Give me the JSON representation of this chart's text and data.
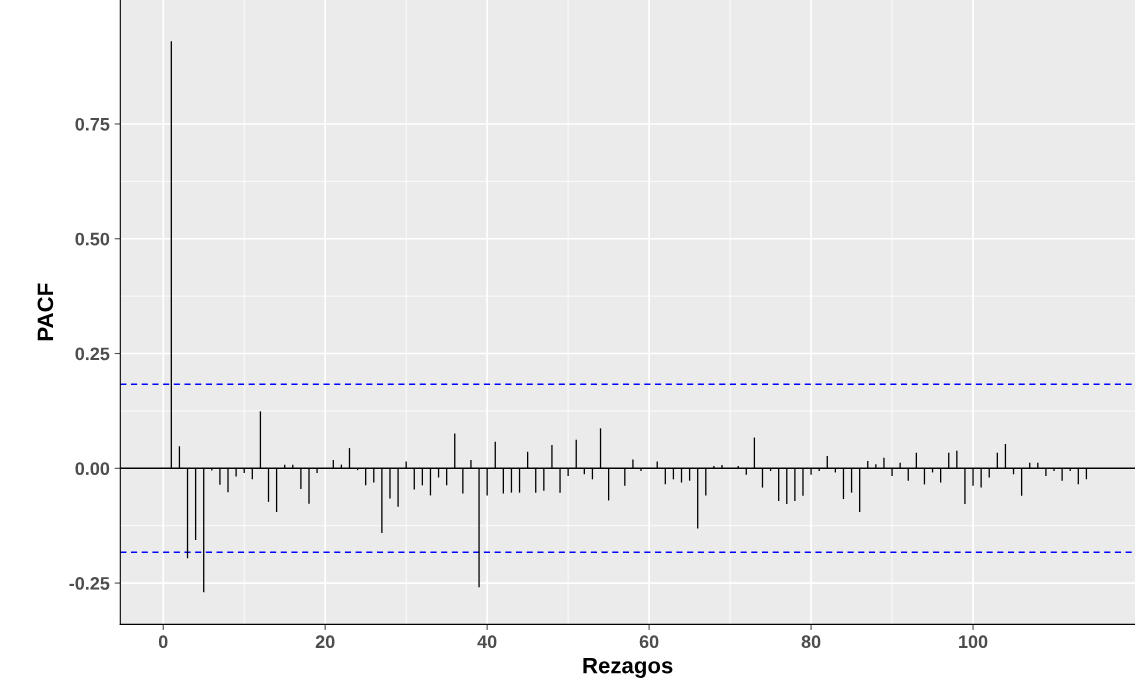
{
  "chart_data": {
    "type": "bar",
    "xlabel": "Rezagos",
    "ylabel": "PACF",
    "x": [
      1,
      2,
      3,
      4,
      5,
      6,
      7,
      8,
      9,
      10,
      11,
      12,
      13,
      14,
      15,
      16,
      17,
      18,
      19,
      20,
      21,
      22,
      23,
      24,
      25,
      26,
      27,
      28,
      29,
      30,
      31,
      32,
      33,
      34,
      35,
      36,
      37,
      38,
      39,
      40,
      41,
      42,
      43,
      44,
      45,
      46,
      47,
      48,
      49,
      50,
      51,
      52,
      53,
      54,
      55,
      56,
      57,
      58,
      59,
      60,
      61,
      62,
      63,
      64,
      65,
      66,
      67,
      68,
      69,
      70,
      71,
      72,
      73,
      74,
      75,
      76,
      77,
      78,
      79,
      80,
      81,
      82,
      83,
      84,
      85,
      86,
      87,
      88,
      89,
      90,
      91,
      92,
      93,
      94,
      95,
      96,
      97,
      98,
      99,
      100,
      101,
      102,
      103,
      104,
      105,
      106,
      107,
      108,
      109,
      110,
      111,
      112,
      113,
      114
    ],
    "values": [
      0.93,
      0.048,
      -0.196,
      -0.156,
      -0.27,
      -0.005,
      -0.036,
      -0.052,
      -0.018,
      -0.01,
      -0.024,
      0.124,
      -0.073,
      -0.095,
      0.008,
      0.008,
      -0.045,
      -0.077,
      -0.01,
      0.0,
      0.018,
      0.008,
      0.044,
      -0.004,
      -0.037,
      -0.031,
      -0.141,
      -0.066,
      -0.084,
      0.015,
      -0.046,
      -0.037,
      -0.059,
      -0.02,
      -0.037,
      0.076,
      -0.055,
      0.018,
      -0.259,
      -0.059,
      0.058,
      -0.055,
      -0.053,
      -0.053,
      0.036,
      -0.053,
      -0.049,
      0.051,
      -0.053,
      -0.017,
      0.062,
      -0.013,
      -0.024,
      0.087,
      -0.07,
      0.0,
      -0.038,
      0.019,
      -0.006,
      0.0,
      0.015,
      -0.035,
      -0.024,
      -0.031,
      -0.027,
      -0.131,
      -0.059,
      0.005,
      0.007,
      0.0,
      0.005,
      -0.014,
      0.067,
      -0.042,
      -0.006,
      -0.071,
      -0.078,
      -0.071,
      -0.06,
      -0.014,
      -0.006,
      0.027,
      -0.009,
      -0.067,
      -0.053,
      -0.095,
      0.016,
      0.009,
      0.023,
      -0.017,
      0.012,
      -0.027,
      0.034,
      -0.035,
      -0.009,
      -0.031,
      0.034,
      0.038,
      -0.078,
      -0.038,
      -0.042,
      -0.02,
      0.034,
      0.053,
      -0.013,
      -0.06,
      0.012,
      0.012,
      -0.017,
      -0.006,
      -0.027,
      -0.006,
      -0.035,
      -0.024
    ],
    "color": "#000000",
    "xlim": [
      -5.3,
      120
    ],
    "xticks": [
      0,
      20,
      40,
      60,
      80,
      100
    ],
    "ylim": [
      -0.34,
      1.02
    ],
    "yticks": [
      {
        "value": -0.25,
        "label": "-0.25"
      },
      {
        "value": 0,
        "label": "0.00"
      },
      {
        "value": 0.25,
        "label": "0.25"
      },
      {
        "value": 0.5,
        "label": "0.50"
      },
      {
        "value": 0.75,
        "label": "0.75"
      }
    ],
    "ref_lines": [
      {
        "axis": "y",
        "value": 0,
        "color": "#000000",
        "line_style": "solid"
      },
      {
        "axis": "y",
        "value": 0.183,
        "color": "#0000ff",
        "line_style": "dashed"
      },
      {
        "axis": "y",
        "value": -0.183,
        "color": "#0000ff",
        "line_style": "dashed"
      }
    ],
    "grid": true
  }
}
